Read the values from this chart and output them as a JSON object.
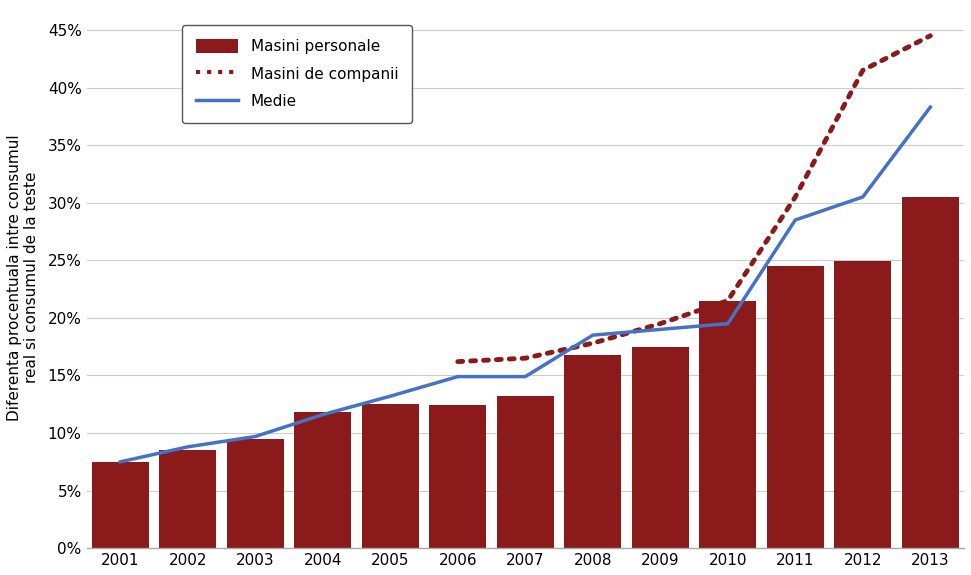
{
  "years": [
    2001,
    2002,
    2003,
    2004,
    2005,
    2006,
    2007,
    2008,
    2009,
    2010,
    2011,
    2012,
    2013
  ],
  "masini_personale": [
    0.075,
    0.085,
    0.095,
    0.118,
    0.125,
    0.124,
    0.132,
    0.168,
    0.175,
    0.215,
    0.245,
    0.249,
    0.305
  ],
  "masini_companii_x": [
    5,
    6,
    7,
    8,
    9,
    10,
    11,
    12
  ],
  "masini_companii_y": [
    0.162,
    0.165,
    0.178,
    0.195,
    0.215,
    0.305,
    0.415,
    0.445
  ],
  "medie": [
    0.075,
    0.088,
    0.097,
    0.116,
    0.132,
    0.149,
    0.149,
    0.185,
    0.19,
    0.195,
    0.285,
    0.305,
    0.383
  ],
  "bar_color": "#8B1A1A",
  "dotted_color": "#8B1A1A",
  "line_color": "#4472C4",
  "ylabel": "Diferenta procentuala intre consumul\nreal si consumul de la teste",
  "ylim": [
    0,
    0.47
  ],
  "yticks": [
    0,
    0.05,
    0.1,
    0.15,
    0.2,
    0.25,
    0.3,
    0.35,
    0.4,
    0.45
  ],
  "legend_labels": [
    "Masini personale",
    "Masini de companii",
    "Medie"
  ],
  "background_color": "#ffffff",
  "grid_color": "#cccccc",
  "spine_color": "#aaaaaa"
}
